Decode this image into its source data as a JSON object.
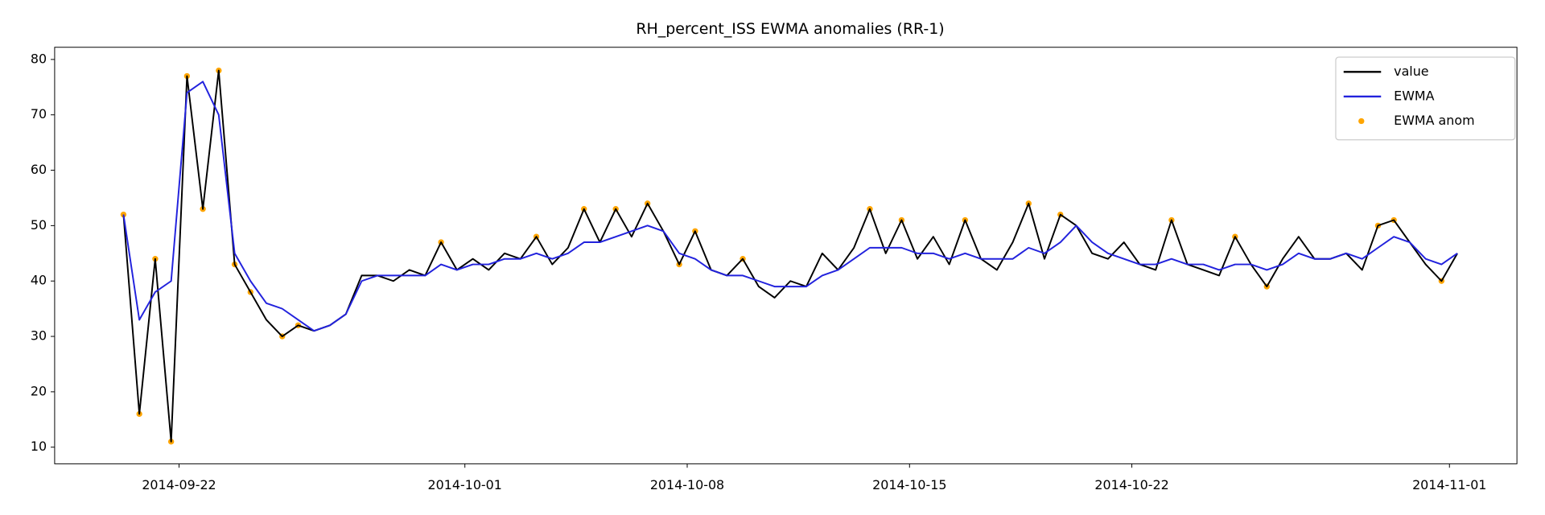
{
  "chart_data": {
    "type": "line",
    "title": "RH_percent_ISS EWMA anomalies (RR-1)",
    "x": [
      "2014-09-20 06:00",
      "2014-09-20 18:00",
      "2014-09-21 06:00",
      "2014-09-21 18:00",
      "2014-09-22 06:00",
      "2014-09-22 18:00",
      "2014-09-23 06:00",
      "2014-09-23 18:00",
      "2014-09-24 06:00",
      "2014-09-24 18:00",
      "2014-09-25 06:00",
      "2014-09-25 18:00",
      "2014-09-26 06:00",
      "2014-09-26 18:00",
      "2014-09-27 06:00",
      "2014-09-27 18:00",
      "2014-09-28 06:00",
      "2014-09-28 18:00",
      "2014-09-29 06:00",
      "2014-09-29 18:00",
      "2014-09-30 06:00",
      "2014-09-30 18:00",
      "2014-10-01 06:00",
      "2014-10-01 18:00",
      "2014-10-02 06:00",
      "2014-10-02 18:00",
      "2014-10-03 06:00",
      "2014-10-03 18:00",
      "2014-10-04 06:00",
      "2014-10-04 18:00",
      "2014-10-05 06:00",
      "2014-10-05 18:00",
      "2014-10-06 06:00",
      "2014-10-06 18:00",
      "2014-10-07 06:00",
      "2014-10-07 18:00",
      "2014-10-08 06:00",
      "2014-10-08 18:00",
      "2014-10-09 06:00",
      "2014-10-09 18:00",
      "2014-10-10 06:00",
      "2014-10-10 18:00",
      "2014-10-11 06:00",
      "2014-10-11 18:00",
      "2014-10-12 06:00",
      "2014-10-12 18:00",
      "2014-10-13 06:00",
      "2014-10-13 18:00",
      "2014-10-14 06:00",
      "2014-10-14 18:00",
      "2014-10-15 06:00",
      "2014-10-15 18:00",
      "2014-10-16 06:00",
      "2014-10-16 18:00",
      "2014-10-17 06:00",
      "2014-10-17 18:00",
      "2014-10-18 06:00",
      "2014-10-18 18:00",
      "2014-10-19 06:00",
      "2014-10-19 18:00",
      "2014-10-20 06:00",
      "2014-10-20 18:00",
      "2014-10-21 06:00",
      "2014-10-21 18:00",
      "2014-10-22 06:00",
      "2014-10-22 18:00",
      "2014-10-23 06:00",
      "2014-10-23 18:00",
      "2014-10-24 06:00",
      "2014-10-24 18:00",
      "2014-10-25 06:00",
      "2014-10-25 18:00",
      "2014-10-26 06:00",
      "2014-10-26 18:00",
      "2014-10-27 06:00",
      "2014-10-27 18:00",
      "2014-10-28 06:00",
      "2014-10-28 18:00",
      "2014-10-29 06:00",
      "2014-10-29 18:00",
      "2014-10-30 06:00",
      "2014-10-30 18:00",
      "2014-10-31 06:00",
      "2014-10-31 18:00",
      "2014-11-01 06:00"
    ],
    "series": [
      {
        "name": "value",
        "color": "#000000",
        "values": [
          52,
          16,
          44,
          11,
          77,
          53,
          78,
          43,
          38,
          33,
          30,
          32,
          31,
          32,
          34,
          41,
          41,
          40,
          42,
          41,
          47,
          42,
          44,
          42,
          45,
          44,
          48,
          43,
          46,
          53,
          47,
          53,
          48,
          54,
          49,
          43,
          49,
          42,
          41,
          44,
          39,
          37,
          40,
          39,
          45,
          42,
          46,
          53,
          45,
          51,
          44,
          48,
          43,
          51,
          44,
          42,
          47,
          54,
          44,
          52,
          50,
          45,
          44,
          47,
          43,
          42,
          51,
          43,
          42,
          41,
          48,
          43,
          39,
          44,
          48,
          44,
          44,
          45,
          42,
          50,
          51,
          47,
          43,
          40,
          45
        ]
      },
      {
        "name": "EWMA",
        "color": "#2222dd",
        "values": [
          52,
          33,
          38,
          40,
          74,
          76,
          70,
          45,
          40,
          36,
          35,
          33,
          31,
          32,
          34,
          40,
          41,
          41,
          41,
          41,
          43,
          42,
          43,
          43,
          44,
          44,
          45,
          44,
          45,
          47,
          47,
          48,
          49,
          50,
          49,
          45,
          44,
          42,
          41,
          41,
          40,
          39,
          39,
          39,
          41,
          42,
          44,
          46,
          46,
          46,
          45,
          45,
          44,
          45,
          44,
          44,
          44,
          46,
          45,
          47,
          50,
          47,
          45,
          44,
          43,
          43,
          44,
          43,
          43,
          42,
          43,
          43,
          42,
          43,
          45,
          44,
          44,
          45,
          44,
          46,
          48,
          47,
          44,
          43,
          45
        ]
      },
      {
        "name": "EWMA anom",
        "type": "scatter",
        "color": "#ffa500",
        "x": [
          "2014-09-20 06:00",
          "2014-09-20 18:00",
          "2014-09-21 06:00",
          "2014-09-21 18:00",
          "2014-09-22 06:00",
          "2014-09-22 18:00",
          "2014-09-23 06:00",
          "2014-09-23 18:00",
          "2014-09-24 06:00",
          "2014-09-25 06:00",
          "2014-09-25 18:00",
          "2014-09-30 06:00",
          "2014-10-03 06:00",
          "2014-10-04 18:00",
          "2014-10-05 18:00",
          "2014-10-06 18:00",
          "2014-10-07 18:00",
          "2014-10-08 06:00",
          "2014-10-09 18:00",
          "2014-10-13 18:00",
          "2014-10-14 18:00",
          "2014-10-16 18:00",
          "2014-10-18 18:00",
          "2014-10-19 18:00",
          "2014-10-23 06:00",
          "2014-10-25 06:00",
          "2014-10-26 06:00",
          "2014-10-29 18:00",
          "2014-10-30 06:00",
          "2014-10-31 18:00"
        ],
        "values": [
          52,
          16,
          44,
          11,
          77,
          53,
          78,
          43,
          38,
          30,
          32,
          47,
          48,
          53,
          53,
          54,
          43,
          49,
          44,
          53,
          51,
          51,
          54,
          52,
          51,
          48,
          39,
          50,
          51,
          40
        ]
      }
    ],
    "xlim": [
      "2014-09-18 02:00",
      "2014-11-03 03:00"
    ],
    "xticks": [
      "2014-09-22",
      "2014-10-01",
      "2014-10-08",
      "2014-10-15",
      "2014-10-22",
      "2014-11-01"
    ],
    "ylim": [
      7,
      82.2
    ],
    "yticks": [
      10,
      20,
      30,
      40,
      50,
      60,
      70,
      80
    ],
    "grid": false,
    "legend": "upper right"
  }
}
